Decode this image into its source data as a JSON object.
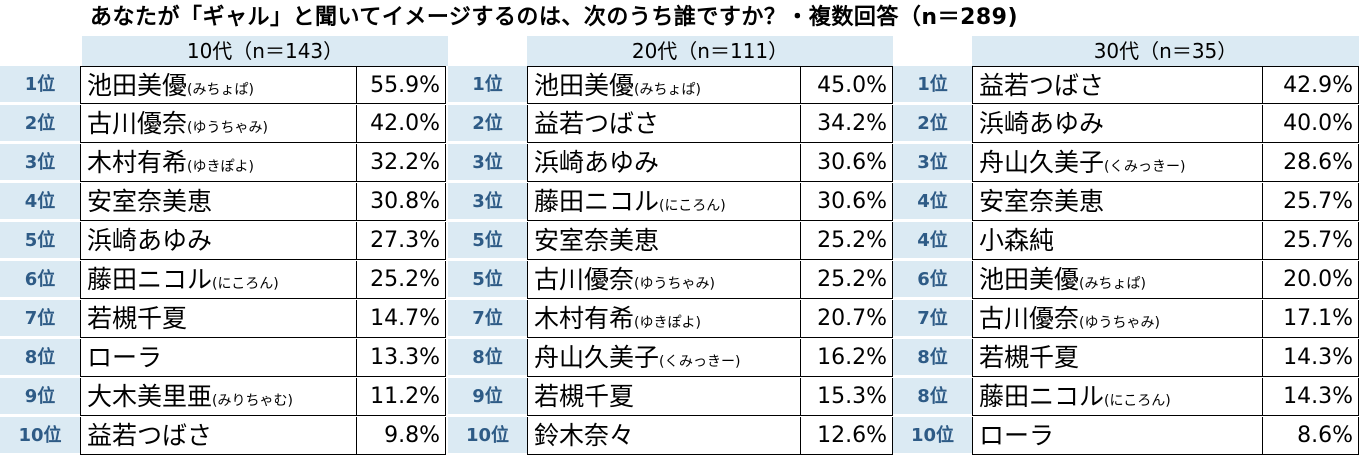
{
  "title": "あなたが「ギャル」と聞いてイメージするのは、次のうち誰ですか？・複数回答（n＝289)",
  "groups": [
    {
      "header": "10代（n＝143）",
      "rows": [
        {
          "rank": "1位",
          "name": "池田美優",
          "reading": "(みちょぱ)",
          "pct": "55.9%"
        },
        {
          "rank": "2位",
          "name": "古川優奈",
          "reading": "(ゆうちゃみ)",
          "pct": "42.0%"
        },
        {
          "rank": "3位",
          "name": "木村有希",
          "reading": "(ゆきぽよ)",
          "pct": "32.2%"
        },
        {
          "rank": "4位",
          "name": "安室奈美恵",
          "reading": "",
          "pct": "30.8%"
        },
        {
          "rank": "5位",
          "name": "浜崎あゆみ",
          "reading": "",
          "pct": "27.3%"
        },
        {
          "rank": "6位",
          "name": "藤田ニコル",
          "reading": "(にころん)",
          "pct": "25.2%"
        },
        {
          "rank": "7位",
          "name": "若槻千夏",
          "reading": "",
          "pct": "14.7%"
        },
        {
          "rank": "8位",
          "name": "ローラ",
          "reading": "",
          "pct": "13.3%"
        },
        {
          "rank": "9位",
          "name": "大木美里亜",
          "reading": "(みりちゃむ)",
          "pct": "11.2%"
        },
        {
          "rank": "10位",
          "name": "益若つばさ",
          "reading": "",
          "pct": "9.8%"
        }
      ]
    },
    {
      "header": "20代（n＝111）",
      "rows": [
        {
          "rank": "1位",
          "name": "池田美優",
          "reading": "(みちょぱ)",
          "pct": "45.0%"
        },
        {
          "rank": "2位",
          "name": "益若つばさ",
          "reading": "",
          "pct": "34.2%"
        },
        {
          "rank": "3位",
          "name": "浜崎あゆみ",
          "reading": "",
          "pct": "30.6%"
        },
        {
          "rank": "3位",
          "name": "藤田ニコル",
          "reading": "(にころん)",
          "pct": "30.6%"
        },
        {
          "rank": "5位",
          "name": "安室奈美恵",
          "reading": "",
          "pct": "25.2%"
        },
        {
          "rank": "5位",
          "name": "古川優奈",
          "reading": "(ゆうちゃみ)",
          "pct": "25.2%"
        },
        {
          "rank": "7位",
          "name": "木村有希",
          "reading": "(ゆきぽよ)",
          "pct": "20.7%"
        },
        {
          "rank": "8位",
          "name": "舟山久美子",
          "reading": "(くみっきー)",
          "pct": "16.2%"
        },
        {
          "rank": "9位",
          "name": "若槻千夏",
          "reading": "",
          "pct": "15.3%"
        },
        {
          "rank": "10位",
          "name": "鈴木奈々",
          "reading": "",
          "pct": "12.6%"
        }
      ]
    },
    {
      "header": "30代（n＝35）",
      "rows": [
        {
          "rank": "1位",
          "name": "益若つばさ",
          "reading": "",
          "pct": "42.9%"
        },
        {
          "rank": "2位",
          "name": "浜崎あゆみ",
          "reading": "",
          "pct": "40.0%"
        },
        {
          "rank": "3位",
          "name": "舟山久美子",
          "reading": "(くみっきー)",
          "pct": "28.6%"
        },
        {
          "rank": "4位",
          "name": "安室奈美恵",
          "reading": "",
          "pct": "25.7%"
        },
        {
          "rank": "4位",
          "name": "小森純",
          "reading": "",
          "pct": "25.7%"
        },
        {
          "rank": "6位",
          "name": "池田美優",
          "reading": "(みちょぱ)",
          "pct": "20.0%"
        },
        {
          "rank": "7位",
          "name": "古川優奈",
          "reading": "(ゆうちゃみ)",
          "pct": "17.1%"
        },
        {
          "rank": "8位",
          "name": "若槻千夏",
          "reading": "",
          "pct": "14.3%"
        },
        {
          "rank": "8位",
          "name": "藤田ニコル",
          "reading": "(にころん)",
          "pct": "14.3%"
        },
        {
          "rank": "10位",
          "name": "ローラ",
          "reading": "",
          "pct": "8.6%"
        }
      ]
    }
  ],
  "colors": {
    "header_bg": "#dbeaf3",
    "rank_text": "#2e5b86",
    "border": "#000000"
  }
}
